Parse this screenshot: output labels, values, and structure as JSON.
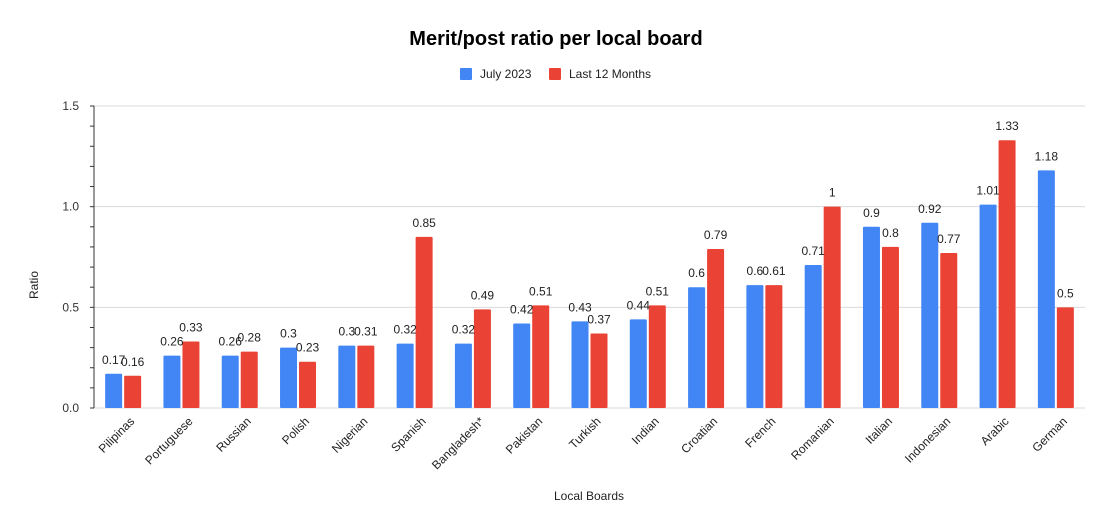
{
  "chart_data": {
    "type": "bar",
    "title": "Merit/post ratio per local board",
    "xlabel": "Local Boards",
    "ylabel": "Ratio",
    "ylim": [
      0,
      1.5
    ],
    "yticks": [
      0.0,
      0.5,
      1.0,
      1.5
    ],
    "ytick_labels": [
      "0.0",
      "0.5",
      "1.0",
      "1.5"
    ],
    "grid": true,
    "legend_position": "top",
    "categories": [
      "Pilipinas",
      "Portuguese",
      "Russian",
      "Polish",
      "Nigerian",
      "Spanish",
      "Bangladesh*",
      "Pakistan",
      "Turkish",
      "Indian",
      "Croatian",
      "French",
      "Romanian",
      "Italian",
      "Indonesian",
      "Arabic",
      "German"
    ],
    "series": [
      {
        "name": "July 2023",
        "color": "#4285f4",
        "values": [
          0.17,
          0.26,
          0.26,
          0.3,
          0.31,
          0.32,
          0.32,
          0.42,
          0.43,
          0.44,
          0.6,
          0.61,
          0.71,
          0.9,
          0.92,
          1.01,
          1.18
        ],
        "labels": [
          "0.17",
          "0.26",
          "0.26",
          "0.3",
          "0.3",
          "0.32",
          "0.32",
          "0.42",
          "0.43",
          "0.44",
          "0.6",
          "0.6",
          "0.71",
          "0.9",
          "0.92",
          "1.01",
          "1.18"
        ]
      },
      {
        "name": "Last 12 Months",
        "color": "#ea4335",
        "values": [
          0.16,
          0.33,
          0.28,
          0.23,
          0.31,
          0.85,
          0.49,
          0.51,
          0.37,
          0.51,
          0.79,
          0.61,
          1.0,
          0.8,
          0.77,
          1.33,
          0.5
        ],
        "labels": [
          "0.16",
          "0.33",
          "0.28",
          "0.23",
          "0.31",
          "0.85",
          "0.49",
          "0.51",
          "0.37",
          "0.51",
          "0.79",
          "0.61",
          "1",
          "0.8",
          "0.77",
          "1.33",
          "0.5"
        ]
      }
    ]
  }
}
